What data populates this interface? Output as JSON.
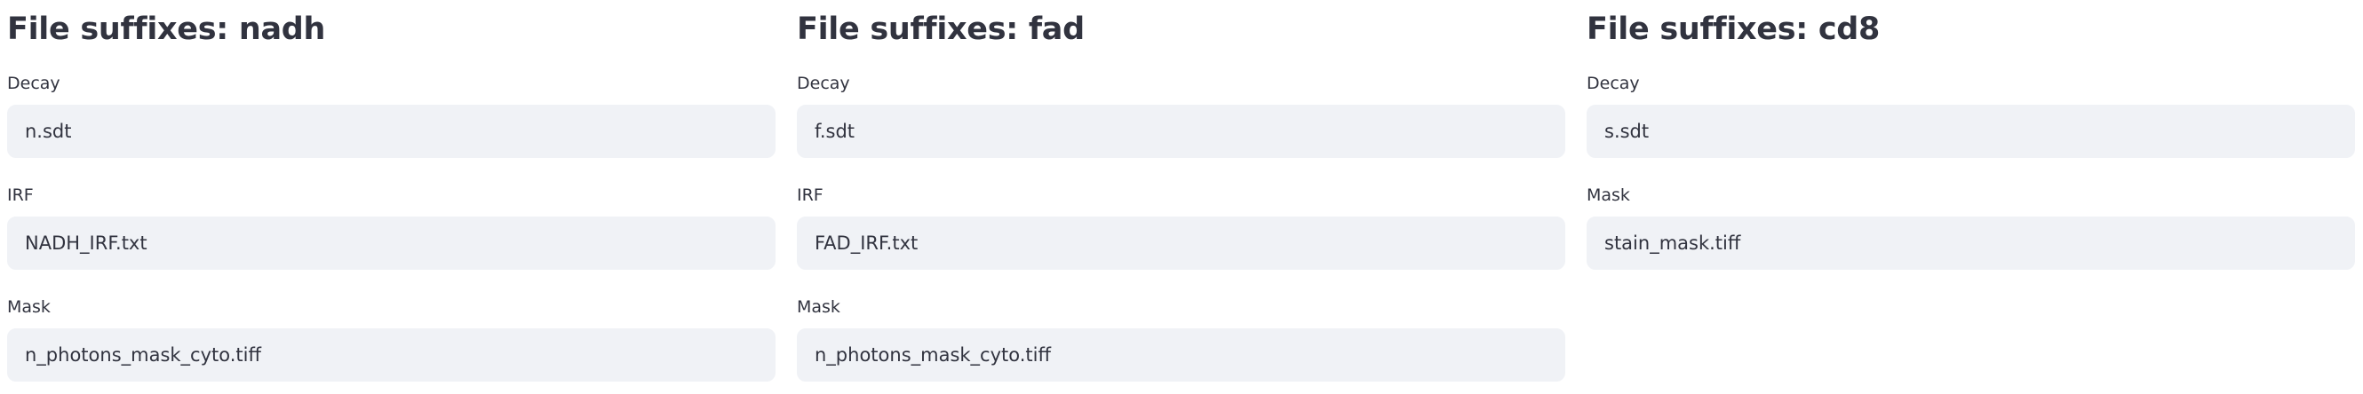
{
  "columns": [
    {
      "title": "File suffixes: nadh",
      "fields": [
        {
          "label": "Decay",
          "value": "n.sdt"
        },
        {
          "label": "IRF",
          "value": "NADH_IRF.txt"
        },
        {
          "label": "Mask",
          "value": "n_photons_mask_cyto.tiff"
        }
      ]
    },
    {
      "title": "File suffixes: fad",
      "fields": [
        {
          "label": "Decay",
          "value": "f.sdt"
        },
        {
          "label": "IRF",
          "value": "FAD_IRF.txt"
        },
        {
          "label": "Mask",
          "value": "n_photons_mask_cyto.tiff"
        }
      ]
    },
    {
      "title": "File suffixes: cd8",
      "fields": [
        {
          "label": "Decay",
          "value": "s.sdt"
        },
        {
          "label": "Mask",
          "value": "stain_mask.tiff"
        }
      ]
    }
  ]
}
